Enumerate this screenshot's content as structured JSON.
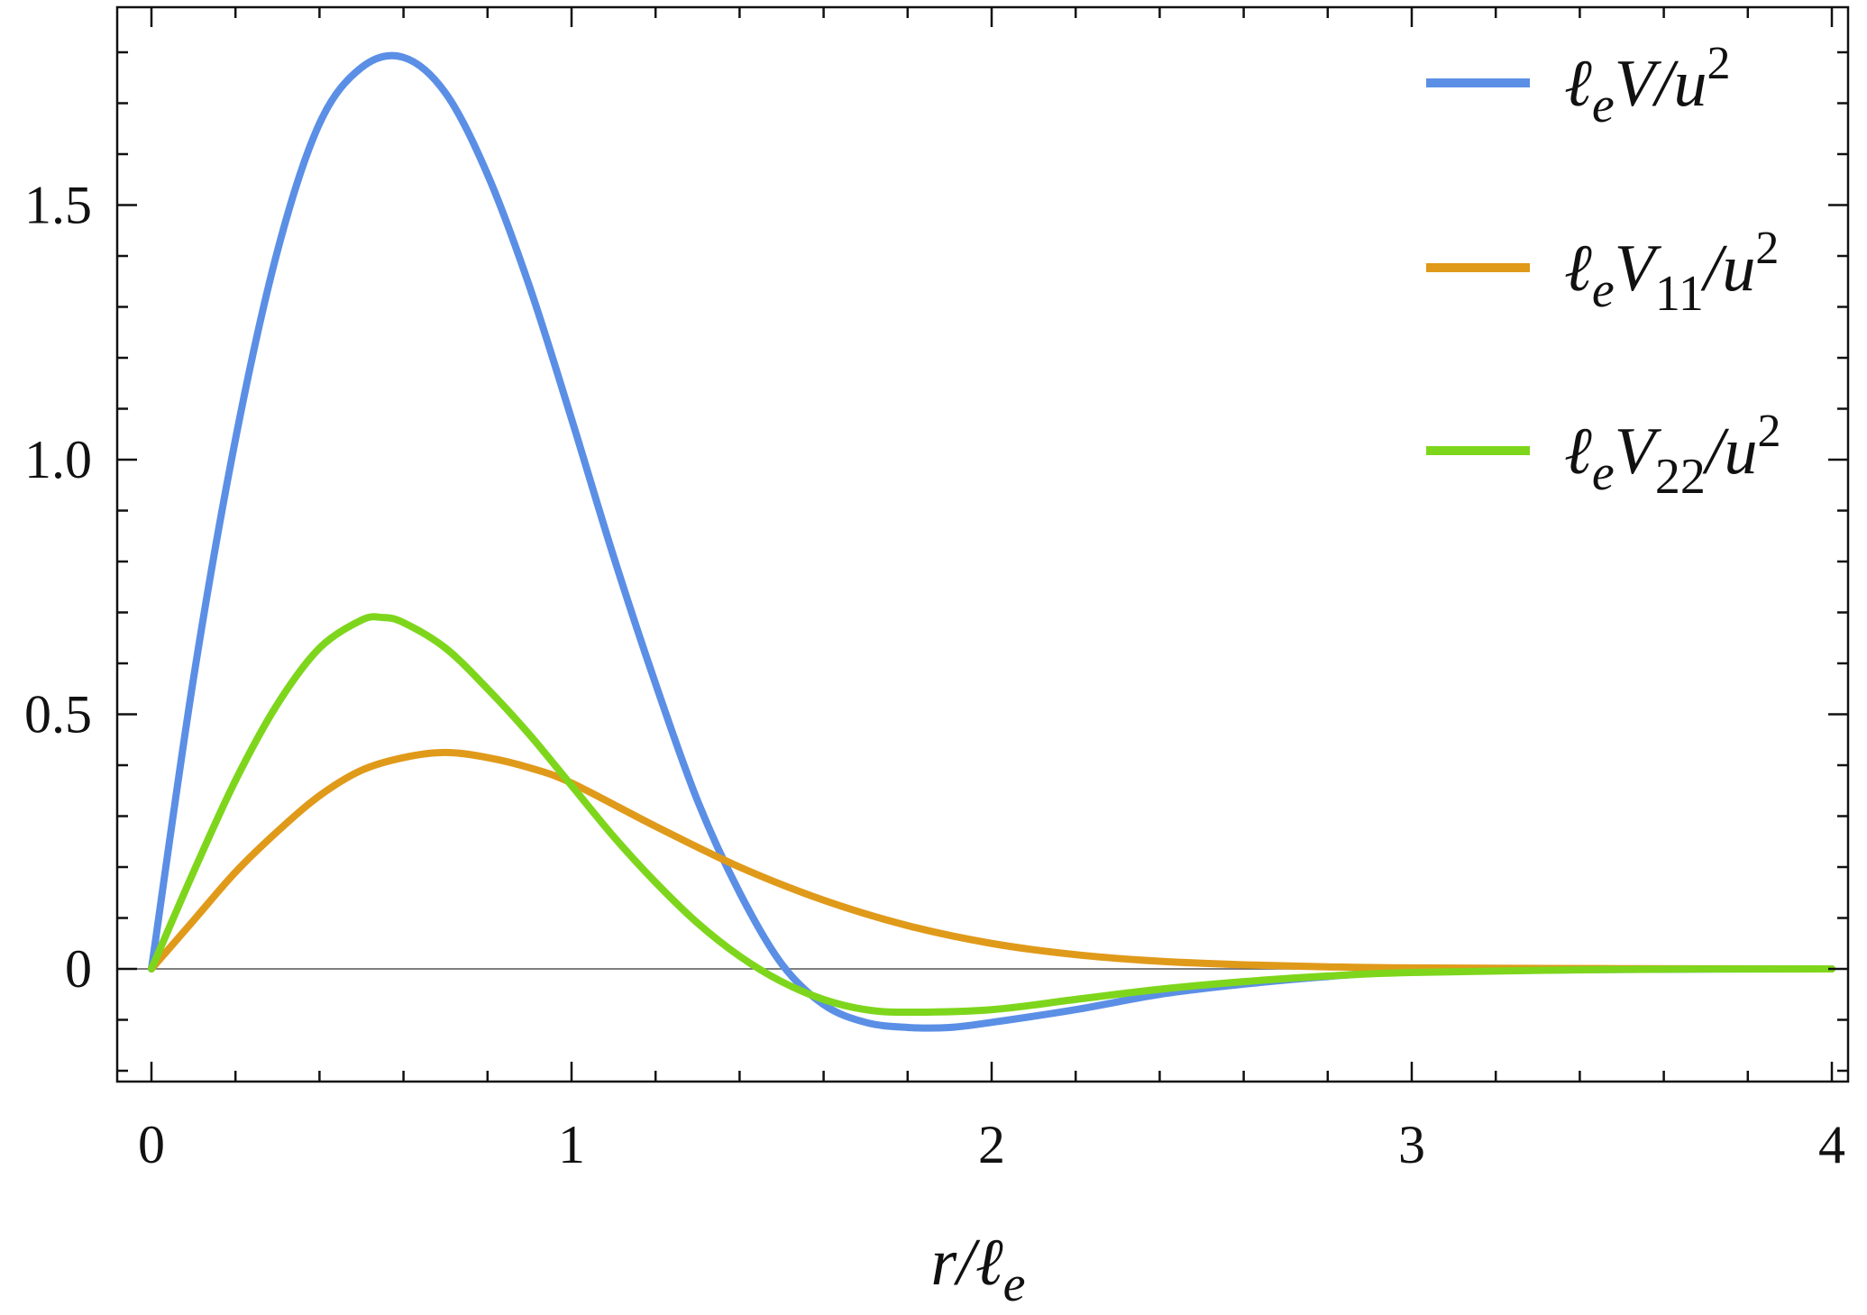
{
  "chart_data": {
    "type": "line",
    "xlabel": "r/ℓe",
    "xlabel_parts": {
      "main": "r/ℓ",
      "sub": "e"
    },
    "xlim": [
      0,
      4
    ],
    "ylim": [
      -0.22,
      1.9
    ],
    "x_ticks": [
      "0",
      "1",
      "2",
      "3",
      "4"
    ],
    "y_ticks": [
      "0",
      "0.5",
      "1.0",
      "1.5"
    ],
    "y_tick_values": [
      0,
      0.5,
      1.0,
      1.5
    ],
    "x_tick_values": [
      0,
      1,
      2,
      3,
      4
    ],
    "grid": false,
    "frame": true,
    "zero_line": true,
    "legend_position": "top-right",
    "series": [
      {
        "name": "ℓeV/u2",
        "label_parts": {
          "pre": "ℓ",
          "presub": "e",
          "main": "V",
          "sub": "",
          "post": "/u",
          "sup": "2"
        },
        "color": "#5b8fe6",
        "x": [
          0,
          0.1,
          0.2,
          0.3,
          0.4,
          0.5,
          0.6,
          0.7,
          0.8,
          0.9,
          1.0,
          1.1,
          1.2,
          1.3,
          1.4,
          1.5,
          1.6,
          1.7,
          1.8,
          1.9,
          2.0,
          2.2,
          2.4,
          2.6,
          2.8,
          3.0,
          3.5,
          4.0
        ],
        "y": [
          0,
          0.57,
          1.04,
          1.41,
          1.66,
          1.77,
          1.79,
          1.72,
          1.56,
          1.34,
          1.08,
          0.81,
          0.56,
          0.33,
          0.15,
          0.01,
          -0.07,
          -0.105,
          -0.115,
          -0.115,
          -0.105,
          -0.08,
          -0.05,
          -0.03,
          -0.015,
          -0.006,
          -0.001,
          0
        ]
      },
      {
        "name": "ℓeV11/u2",
        "label_parts": {
          "pre": "ℓ",
          "presub": "e",
          "main": "V",
          "sub": "11",
          "post": "/u",
          "sup": "2"
        },
        "color": "#e09a1a",
        "x": [
          0,
          0.1,
          0.2,
          0.3,
          0.4,
          0.5,
          0.6,
          0.7,
          0.8,
          0.9,
          1.0,
          1.2,
          1.4,
          1.6,
          1.8,
          2.0,
          2.2,
          2.4,
          2.6,
          2.8,
          3.0,
          3.5,
          4.0
        ],
        "y": [
          0,
          0.095,
          0.19,
          0.27,
          0.34,
          0.39,
          0.415,
          0.425,
          0.415,
          0.395,
          0.365,
          0.28,
          0.2,
          0.135,
          0.085,
          0.05,
          0.028,
          0.015,
          0.008,
          0.004,
          0.002,
          0.0005,
          0
        ]
      },
      {
        "name": "ℓeV22/u2",
        "label_parts": {
          "pre": "ℓ",
          "presub": "e",
          "main": "V",
          "sub": "22",
          "post": "/u",
          "sup": "2"
        },
        "color": "#7ed61c",
        "x": [
          0,
          0.1,
          0.2,
          0.3,
          0.4,
          0.5,
          0.55,
          0.6,
          0.7,
          0.8,
          0.9,
          1.0,
          1.1,
          1.2,
          1.3,
          1.4,
          1.5,
          1.6,
          1.7,
          1.8,
          2.0,
          2.2,
          2.4,
          2.6,
          2.8,
          3.0,
          3.5,
          4.0
        ],
        "y": [
          0,
          0.19,
          0.37,
          0.52,
          0.63,
          0.685,
          0.69,
          0.68,
          0.63,
          0.55,
          0.46,
          0.36,
          0.26,
          0.17,
          0.09,
          0.025,
          -0.025,
          -0.06,
          -0.08,
          -0.085,
          -0.08,
          -0.06,
          -0.04,
          -0.025,
          -0.014,
          -0.007,
          -0.001,
          0
        ]
      }
    ]
  }
}
